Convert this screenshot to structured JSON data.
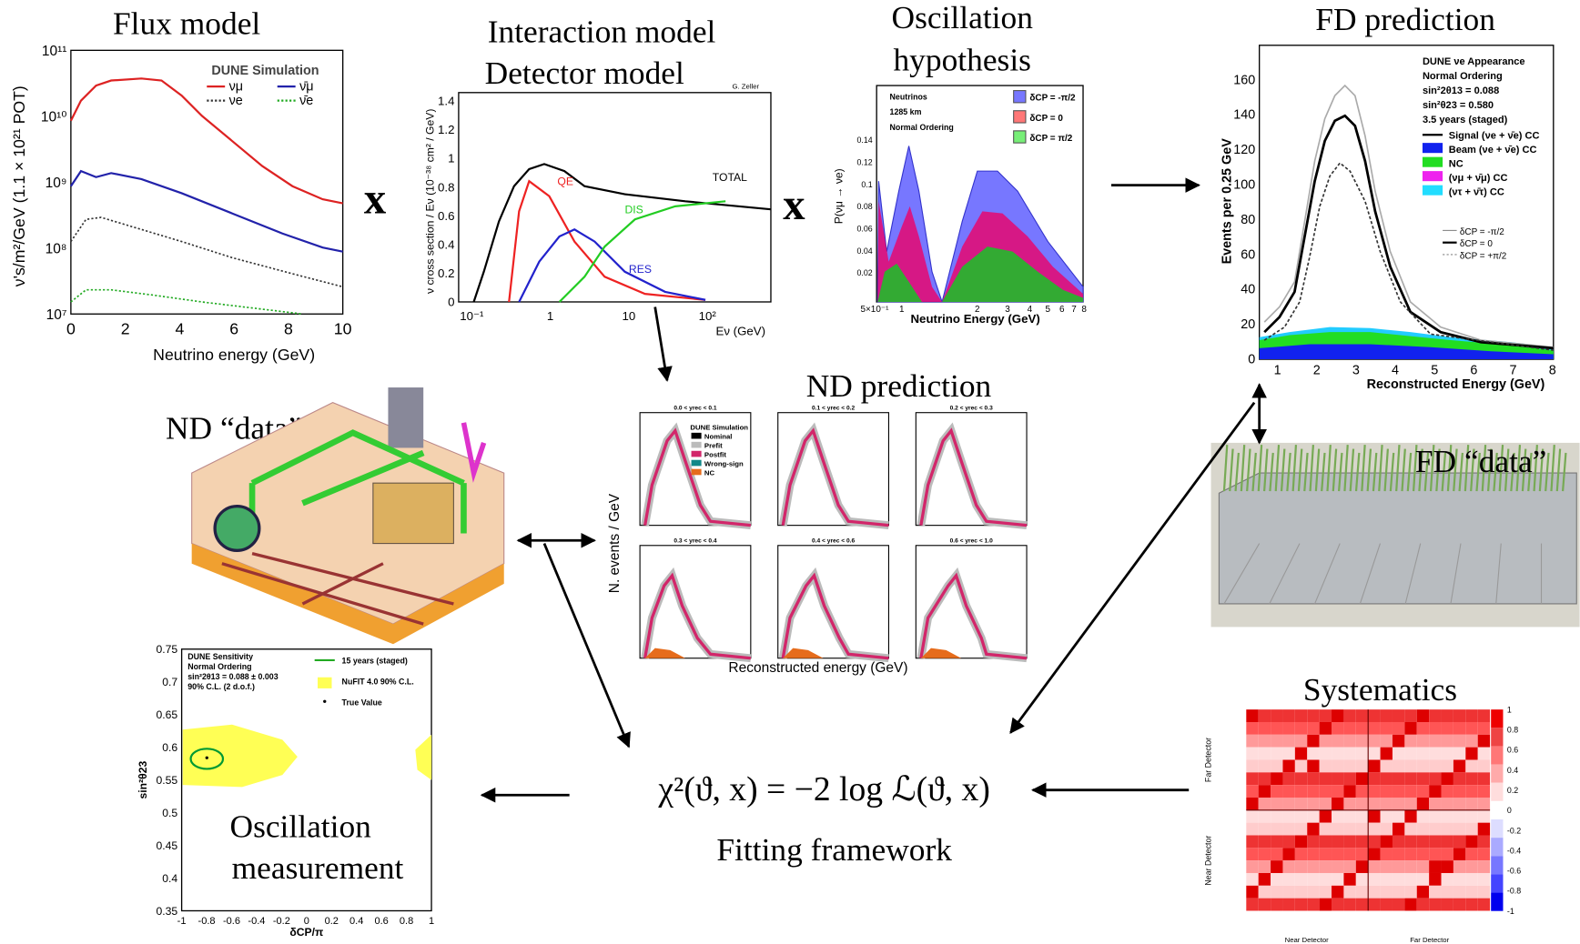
{
  "flux": {
    "title": "Flux model",
    "ylabel": "ν's/m²/GeV (1.1 × 10²¹ POT)",
    "xlabel": "Neutrino energy (GeV)",
    "legend_title": "DUNE Simulation",
    "legend": [
      "νμ",
      "ν̄μ",
      "νe",
      "ν̄e"
    ],
    "xticks": [
      "0",
      "2",
      "4",
      "6",
      "8",
      "10"
    ],
    "yticks": [
      "10⁷",
      "10⁸",
      "10⁹",
      "10¹⁰",
      "10¹¹"
    ]
  },
  "operator_1": "x",
  "operator_2": "x",
  "interaction": {
    "title_1": "Interaction model",
    "title_2": "Detector model",
    "credit": "G. Zeller",
    "ylabel": "ν cross section / Eν (10⁻³⁸ cm² / GeV)",
    "xlabel": "Eν (GeV)",
    "curves": [
      "TOTAL",
      "QE",
      "DIS",
      "RES"
    ],
    "xticks": [
      "10⁻¹",
      "1",
      "10",
      "10²"
    ],
    "yticks": [
      "0",
      "0.2",
      "0.4",
      "0.6",
      "0.8",
      "1",
      "1.2",
      "1.4"
    ]
  },
  "oscillation": {
    "title_1": "Oscillation",
    "title_2": "hypothesis",
    "info": [
      "Neutrinos",
      "1285 km",
      "Normal Ordering"
    ],
    "legend": [
      "δCP = -π/2",
      "δCP = 0",
      "δCP = π/2"
    ],
    "ylabel": "P(νμ → νe)",
    "xlabel": "Neutrino Energy (GeV)",
    "yticks": [
      "0.02",
      "0.04",
      "0.06",
      "0.08",
      "0.1",
      "0.12",
      "0.14"
    ],
    "xticks": [
      "5×10⁻¹",
      "1",
      "2",
      "3",
      "4",
      "5",
      "6",
      "7",
      "8"
    ]
  },
  "fd_prediction": {
    "title": "FD prediction",
    "ylabel": "Events per 0.25 GeV",
    "xlabel": "Reconstructed Energy (GeV)",
    "info": [
      "DUNE νe Appearance",
      "Normal Ordering",
      "sin²2θ13 = 0.088",
      "sin²θ23 = 0.580",
      "3.5 years (staged)"
    ],
    "legend": [
      "Signal (νe + ν̄e) CC",
      "Beam (νe + ν̄e) CC",
      "NC",
      "(νμ + ν̄μ) CC",
      "(ντ + ν̄τ) CC"
    ],
    "delta_legend": [
      "δCP = -π/2",
      "δCP = 0",
      "δCP = +π/2"
    ],
    "yticks": [
      "0",
      "20",
      "40",
      "60",
      "80",
      "100",
      "120",
      "140",
      "160"
    ],
    "xticks": [
      "1",
      "2",
      "3",
      "4",
      "5",
      "6",
      "7",
      "8"
    ]
  },
  "nd_prediction": {
    "title": "ND prediction",
    "ylabel": "N. events / GeV",
    "xlabel": "Reconstructed energy (GeV)",
    "legend_title": "DUNE Simulation",
    "legend": [
      "Nominal",
      "Prefit",
      "Postfit",
      "Wrong-sign",
      "NC"
    ],
    "bins": [
      "0.0 < yrec < 0.1",
      "0.1 < yrec < 0.2",
      "0.2 < yrec < 0.3",
      "0.3 < yrec < 0.4",
      "0.4 < yrec < 0.6",
      "0.6 < yrec < 1.0"
    ]
  },
  "nd_data": {
    "title": "ND “data”"
  },
  "fd_data": {
    "title": "FD “data”"
  },
  "measurement": {
    "title_1": "Oscillation",
    "title_2": "measurement",
    "info": [
      "DUNE Sensitivity",
      "Normal Ordering",
      "sin²2θ13 = 0.088 ± 0.003",
      "90% C.L. (2 d.o.f.)"
    ],
    "legend": [
      "15 years (staged)",
      "NuFIT 4.0 90% C.L.",
      "True Value"
    ],
    "ylabel": "sin²θ23",
    "xlabel": "δCP/π",
    "yticks": [
      "0.35",
      "0.4",
      "0.45",
      "0.5",
      "0.55",
      "0.6",
      "0.65",
      "0.7",
      "0.75"
    ],
    "xticks": [
      "-1",
      "-0.8",
      "-0.6",
      "-0.4",
      "-0.2",
      "0",
      "0.2",
      "0.4",
      "0.6",
      "0.8",
      "1"
    ]
  },
  "fit": {
    "equation": "χ²(ϑ, x) = −2 log ℒ(ϑ, x)",
    "label": "Fitting framework"
  },
  "systematics": {
    "title": "Systematics",
    "x_groups": [
      "Near Detector",
      "Far Detector"
    ],
    "y_groups": [
      "Far Detector",
      "Near Detector"
    ],
    "colorbar": [
      "1",
      "0.8",
      "0.6",
      "0.4",
      "0.2",
      "0",
      "-0.2",
      "-0.4",
      "-0.6",
      "-0.8",
      "-1"
    ]
  }
}
